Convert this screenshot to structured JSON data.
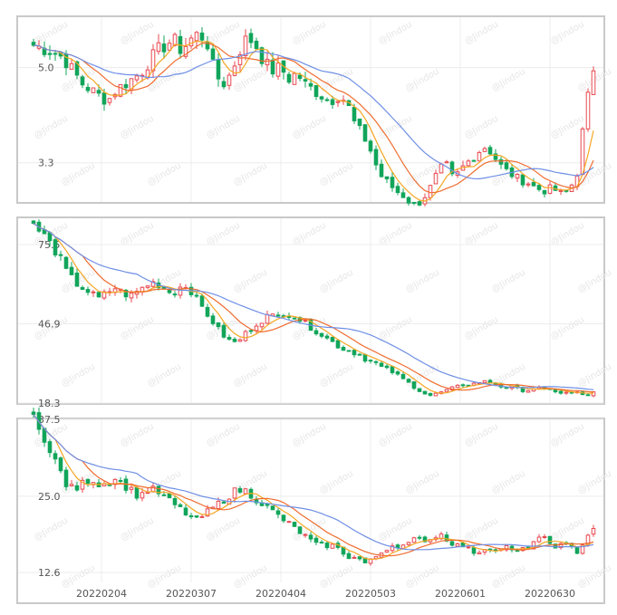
{
  "colors": {
    "up": "#e8484f",
    "down": "#11a55a",
    "ma_fast": "#f5a623",
    "ma_mid": "#ef6c2e",
    "ma_slow": "#6f8fe6",
    "grid": "#ececec",
    "border": "#c9c9c9",
    "watermark": "#e6e6e6"
  },
  "watermark_text": "@Jindou",
  "x_tick_labels": [
    "20220204",
    "20220307",
    "20220404",
    "20220503",
    "20220601",
    "20220630"
  ],
  "chart_data": [
    {
      "type": "candlestick",
      "y_tick_labels": [
        "5.0",
        "3.3"
      ],
      "ylim": [
        2.6,
        5.9
      ],
      "grid": true,
      "series": [
        {
          "name": "",
          "values": []
        }
      ],
      "anchors": [
        5.4,
        5.35,
        5.3,
        5.25,
        5.1,
        4.9,
        4.7,
        4.6,
        4.5,
        4.4,
        4.6,
        4.7,
        4.8,
        4.9,
        5.1,
        5.3,
        5.4,
        5.5,
        5.3,
        5.5,
        5.6,
        5.5,
        4.9,
        4.7,
        4.9,
        5.3,
        5.55,
        5.4,
        5.1,
        4.95,
        5.0,
        4.8,
        4.9,
        4.7,
        4.6,
        4.5,
        4.4,
        4.5,
        4.4,
        4.0,
        3.8,
        3.5,
        3.1,
        2.95,
        2.8,
        2.7,
        2.55,
        2.6,
        2.8,
        3.1,
        3.3,
        3.0,
        3.2,
        3.35,
        3.5,
        3.6,
        3.4,
        3.2,
        3.1,
        3.0,
        2.95,
        2.85,
        2.8,
        2.85,
        2.75,
        2.8,
        3.1,
        4.2,
        5.0
      ]
    },
    {
      "type": "candlestick",
      "y_tick_labels": [
        "75.5",
        "46.9",
        "18.3"
      ],
      "ylim": [
        18.3,
        85
      ],
      "grid": true,
      "anchors": [
        82,
        80,
        76,
        72,
        66,
        62,
        60,
        58,
        56,
        58,
        60,
        58,
        57,
        59,
        61,
        62,
        60,
        58,
        60,
        61,
        56,
        52,
        48,
        44,
        41,
        40,
        43,
        46,
        48,
        50,
        49,
        51,
        50,
        48,
        46,
        44,
        42,
        40,
        38,
        37,
        36,
        34,
        33,
        31,
        30,
        28,
        26,
        24,
        22,
        21,
        22,
        23,
        24,
        25,
        25,
        26,
        26,
        25,
        24,
        24,
        23,
        23,
        24,
        23,
        23,
        22,
        22,
        22,
        21,
        22
      ]
    },
    {
      "type": "candlestick",
      "y_tick_labels": [
        "37.5",
        "25.0",
        "12.6"
      ],
      "ylim": [
        11.0,
        37.5
      ],
      "grid": true,
      "anchors": [
        38,
        36,
        32,
        30,
        27,
        26,
        27,
        28,
        27,
        27,
        28,
        27,
        26,
        25,
        26,
        26,
        25,
        24,
        23,
        22,
        21,
        22,
        23,
        24,
        25,
        26,
        26,
        25,
        24,
        23,
        22,
        21,
        20,
        19,
        18,
        17,
        17,
        17,
        16,
        15,
        15,
        14,
        15,
        16,
        17,
        17,
        17,
        18,
        18,
        18,
        19,
        18,
        17,
        17,
        16,
        16,
        17,
        16,
        17,
        16,
        16,
        17,
        18,
        18,
        17,
        17,
        17,
        16,
        18,
        20
      ]
    }
  ]
}
